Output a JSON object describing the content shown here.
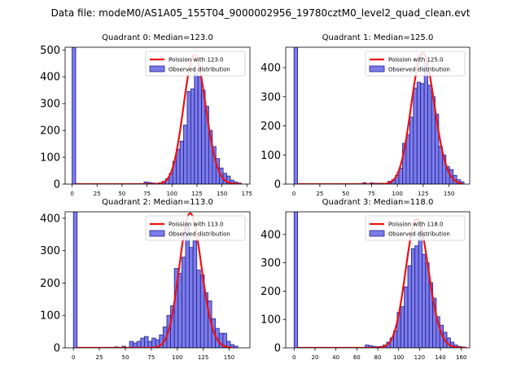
{
  "figure_title": "Data file: modeM0/AS1A05_155T04_9000002956_19780cztM0_level2_quad_clean.evt",
  "colors": {
    "hist_fill": "#7b7bea",
    "hist_edge": "#1f1f8f",
    "poisson_line": "#ee1111",
    "axis": "#000000"
  },
  "chart_data": [
    {
      "type": "bar",
      "title": "Quadrant 0: Median=123.0",
      "median": 123.0,
      "xlim": [
        -7,
        178
      ],
      "ylim": [
        0,
        510
      ],
      "xticks": [
        0,
        25,
        50,
        75,
        100,
        125,
        150,
        175
      ],
      "yticks": [
        0,
        100,
        200,
        300,
        400,
        500
      ],
      "bin_width": 3.6,
      "bins": [
        {
          "x": 0,
          "y": 510
        },
        {
          "x": 72,
          "y": 8
        },
        {
          "x": 75.6,
          "y": 6
        },
        {
          "x": 79.2,
          "y": 4
        },
        {
          "x": 82.8,
          "y": 3
        },
        {
          "x": 86.4,
          "y": 5
        },
        {
          "x": 90,
          "y": 10
        },
        {
          "x": 93.6,
          "y": 20
        },
        {
          "x": 97.2,
          "y": 40
        },
        {
          "x": 100.8,
          "y": 85
        },
        {
          "x": 104.4,
          "y": 130
        },
        {
          "x": 108,
          "y": 160
        },
        {
          "x": 111.6,
          "y": 220
        },
        {
          "x": 115.2,
          "y": 345
        },
        {
          "x": 118.8,
          "y": 355
        },
        {
          "x": 122.4,
          "y": 420
        },
        {
          "x": 126,
          "y": 400
        },
        {
          "x": 129.6,
          "y": 350
        },
        {
          "x": 133.2,
          "y": 290
        },
        {
          "x": 136.8,
          "y": 200
        },
        {
          "x": 140.4,
          "y": 140
        },
        {
          "x": 144,
          "y": 95
        },
        {
          "x": 147.6,
          "y": 60
        },
        {
          "x": 151.2,
          "y": 40
        },
        {
          "x": 154.8,
          "y": 30
        },
        {
          "x": 158.4,
          "y": 15
        },
        {
          "x": 162,
          "y": 8
        },
        {
          "x": 165.6,
          "y": 4
        }
      ],
      "poisson": {
        "lambda": 123.0,
        "peak": 480,
        "x_start": 3,
        "x_end": 170
      },
      "legend": [
        "Poission with 123.0",
        "Observed distribution"
      ]
    },
    {
      "type": "bar",
      "title": "Quadrant 1: Median=125.0",
      "median": 125.0,
      "xlim": [
        -8,
        170
      ],
      "ylim": [
        0,
        470
      ],
      "xticks": [
        0,
        25,
        50,
        75,
        100,
        125,
        150
      ],
      "yticks": [
        0,
        100,
        200,
        300,
        400
      ],
      "bin_width": 3.5,
      "bins": [
        {
          "x": 0,
          "y": 470
        },
        {
          "x": 66.5,
          "y": 5
        },
        {
          "x": 73.5,
          "y": 4
        },
        {
          "x": 77,
          "y": 3
        },
        {
          "x": 80.5,
          "y": 3
        },
        {
          "x": 84,
          "y": 3
        },
        {
          "x": 91,
          "y": 10
        },
        {
          "x": 94.5,
          "y": 15
        },
        {
          "x": 98,
          "y": 30
        },
        {
          "x": 101.5,
          "y": 55
        },
        {
          "x": 105,
          "y": 140
        },
        {
          "x": 108.5,
          "y": 170
        },
        {
          "x": 112,
          "y": 230
        },
        {
          "x": 115.5,
          "y": 330
        },
        {
          "x": 119,
          "y": 350
        },
        {
          "x": 122.5,
          "y": 345
        },
        {
          "x": 126,
          "y": 420
        },
        {
          "x": 129.5,
          "y": 340
        },
        {
          "x": 133,
          "y": 300
        },
        {
          "x": 136.5,
          "y": 240
        },
        {
          "x": 140,
          "y": 130
        },
        {
          "x": 143.5,
          "y": 100
        },
        {
          "x": 147,
          "y": 60
        },
        {
          "x": 150.5,
          "y": 50
        },
        {
          "x": 154,
          "y": 30
        },
        {
          "x": 157.5,
          "y": 15
        },
        {
          "x": 161,
          "y": 8
        }
      ],
      "poisson": {
        "lambda": 125.0,
        "peak": 450,
        "x_start": 3,
        "x_end": 163
      },
      "legend": [
        "Poission with 125.0",
        "Observed distribution"
      ]
    },
    {
      "type": "bar",
      "title": "Quadrant 2: Median=113.0",
      "median": 113.0,
      "xlim": [
        -8,
        170
      ],
      "ylim": [
        0,
        420
      ],
      "xticks": [
        0,
        25,
        50,
        75,
        100,
        125,
        150
      ],
      "yticks": [
        0,
        100,
        200,
        300,
        400
      ],
      "bin_width": 3.6,
      "bins": [
        {
          "x": 0,
          "y": 420
        },
        {
          "x": 39.6,
          "y": 3
        },
        {
          "x": 46.8,
          "y": 5
        },
        {
          "x": 54,
          "y": 20
        },
        {
          "x": 57.6,
          "y": 15
        },
        {
          "x": 61.2,
          "y": 20
        },
        {
          "x": 64.8,
          "y": 30
        },
        {
          "x": 68.4,
          "y": 35
        },
        {
          "x": 72,
          "y": 20
        },
        {
          "x": 75.6,
          "y": 30
        },
        {
          "x": 79.2,
          "y": 25
        },
        {
          "x": 82.8,
          "y": 40
        },
        {
          "x": 86.4,
          "y": 65
        },
        {
          "x": 90,
          "y": 100
        },
        {
          "x": 93.6,
          "y": 130
        },
        {
          "x": 97.2,
          "y": 245
        },
        {
          "x": 100.8,
          "y": 230
        },
        {
          "x": 104.4,
          "y": 280
        },
        {
          "x": 108,
          "y": 380
        },
        {
          "x": 111.6,
          "y": 310
        },
        {
          "x": 115.2,
          "y": 330
        },
        {
          "x": 118.8,
          "y": 240
        },
        {
          "x": 122.4,
          "y": 225
        },
        {
          "x": 126,
          "y": 170
        },
        {
          "x": 129.6,
          "y": 145
        },
        {
          "x": 133.2,
          "y": 90
        },
        {
          "x": 136.8,
          "y": 60
        },
        {
          "x": 140.4,
          "y": 45
        },
        {
          "x": 144,
          "y": 45
        },
        {
          "x": 147.6,
          "y": 20
        },
        {
          "x": 151.2,
          "y": 10
        },
        {
          "x": 154.8,
          "y": 5
        }
      ],
      "poisson": {
        "lambda": 113.0,
        "peak": 415,
        "x_start": 3,
        "x_end": 153
      },
      "legend": [
        "Poission with 113.0",
        "Observed distribution"
      ]
    },
    {
      "type": "bar",
      "title": "Quadrant 3: Median=118.0",
      "median": 118.0,
      "xlim": [
        -8,
        168
      ],
      "ylim": [
        0,
        480
      ],
      "xticks": [
        0,
        20,
        40,
        60,
        80,
        100,
        120,
        140,
        160
      ],
      "yticks": [
        0,
        100,
        200,
        300,
        400
      ],
      "bin_width": 3.4,
      "bins": [
        {
          "x": 0,
          "y": 480
        },
        {
          "x": 68,
          "y": 10
        },
        {
          "x": 71.4,
          "y": 8
        },
        {
          "x": 74.8,
          "y": 5
        },
        {
          "x": 78.2,
          "y": 4
        },
        {
          "x": 81.6,
          "y": 5
        },
        {
          "x": 85,
          "y": 10
        },
        {
          "x": 88.4,
          "y": 20
        },
        {
          "x": 91.8,
          "y": 35
        },
        {
          "x": 95.2,
          "y": 60
        },
        {
          "x": 98.6,
          "y": 125
        },
        {
          "x": 102,
          "y": 145
        },
        {
          "x": 105.4,
          "y": 215
        },
        {
          "x": 108.8,
          "y": 290
        },
        {
          "x": 112.2,
          "y": 350
        },
        {
          "x": 115.6,
          "y": 360
        },
        {
          "x": 119,
          "y": 410
        },
        {
          "x": 122.4,
          "y": 330
        },
        {
          "x": 125.8,
          "y": 300
        },
        {
          "x": 129.2,
          "y": 230
        },
        {
          "x": 132.6,
          "y": 175
        },
        {
          "x": 136,
          "y": 110
        },
        {
          "x": 139.4,
          "y": 80
        },
        {
          "x": 142.8,
          "y": 55
        },
        {
          "x": 146.2,
          "y": 35
        },
        {
          "x": 149.6,
          "y": 20
        },
        {
          "x": 153,
          "y": 10
        },
        {
          "x": 156.4,
          "y": 5
        },
        {
          "x": 159.8,
          "y": 3
        }
      ],
      "poisson": {
        "lambda": 118.0,
        "peak": 455,
        "x_start": 3,
        "x_end": 165
      },
      "legend": [
        "Poission with 118.0",
        "Observed distribution"
      ]
    }
  ]
}
